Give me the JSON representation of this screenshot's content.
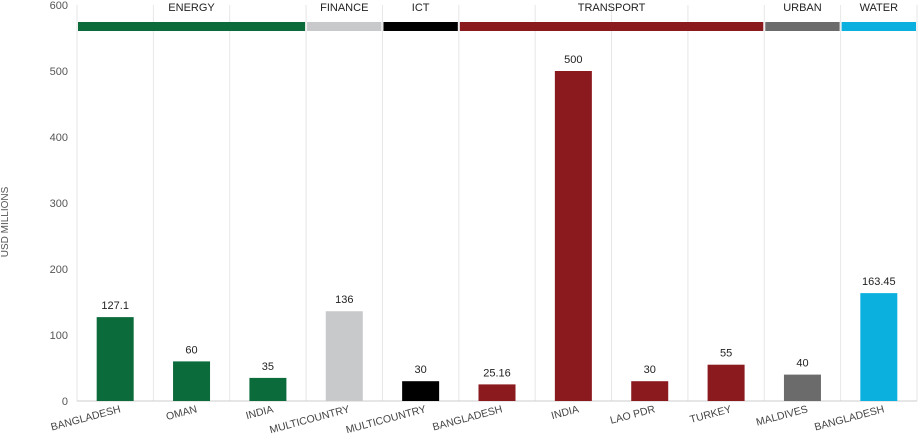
{
  "chart_data": {
    "type": "bar",
    "ylabel": "USD MILLIONS",
    "xlabel": "",
    "title": "",
    "ylim": [
      0,
      600
    ],
    "yticks": [
      0,
      100,
      200,
      300,
      400,
      500,
      600
    ],
    "grid": "vertical separators only",
    "value_labels": [
      "127.1",
      "60",
      "35",
      "136",
      "30",
      "25.16",
      "500",
      "30",
      "55",
      "40",
      "163.45"
    ],
    "categories": [
      "BANGLADESH",
      "OMAN",
      "INDIA",
      "MULTICOUNTRY",
      "MULTICOUNTRY",
      "BANGLADESH",
      "INDIA",
      "LAO PDR",
      "TURKEY",
      "MALDIVES",
      "BANGLADESH"
    ],
    "values": [
      127.1,
      60,
      35,
      136,
      30,
      25.16,
      500,
      30,
      55,
      40,
      163.45
    ],
    "groups": [
      {
        "name": "ENERGY",
        "count": 3,
        "color": "#0b6b3a"
      },
      {
        "name": "FINANCE",
        "count": 1,
        "color": "#c8c9cb"
      },
      {
        "name": "ICT",
        "count": 1,
        "color": "#000000"
      },
      {
        "name": "TRANSPORT",
        "count": 4,
        "color": "#8b1a1f"
      },
      {
        "name": "URBAN",
        "count": 1,
        "color": "#6b6b6b"
      },
      {
        "name": "WATER",
        "count": 1,
        "color": "#0bb0de"
      }
    ]
  }
}
